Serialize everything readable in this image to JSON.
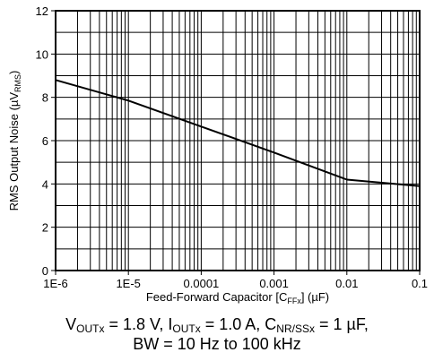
{
  "chart_data": {
    "type": "line",
    "x_scale": "log",
    "xlim": [
      1e-06,
      0.1
    ],
    "ylim": [
      0,
      12
    ],
    "grid": true,
    "x_tick_labels": [
      "1E-6",
      "1E-5",
      "0.0001",
      "0.001",
      "0.01",
      "0.1"
    ],
    "x_tick_values": [
      1e-06,
      1e-05,
      0.0001,
      0.001,
      0.01,
      0.1
    ],
    "y_tick_labels": [
      "0",
      "2",
      "4",
      "6",
      "8",
      "10",
      "12"
    ],
    "y_tick_values": [
      0,
      2,
      4,
      6,
      8,
      10,
      12
    ],
    "xlabel": {
      "main": "Feed-Forward Capacitor [C",
      "sub": "FFx",
      "tail": "] (µF)"
    },
    "ylabel": {
      "main": "RMS Output Noise (µV",
      "sub": "RMS",
      "tail": ")"
    },
    "series": [
      {
        "color": "#000000",
        "x": [
          1e-06,
          1e-05,
          0.0001,
          0.001,
          0.01,
          0.1
        ],
        "y": [
          8.8,
          7.85,
          6.65,
          5.45,
          4.2,
          3.9
        ]
      }
    ]
  },
  "caption": {
    "line1": [
      {
        "t": "V"
      },
      {
        "s": "OUTx"
      },
      {
        "t": " = 1.8 V, I"
      },
      {
        "s": "OUTx"
      },
      {
        "t": " = 1.0 A, C"
      },
      {
        "s": "NR/SSx"
      },
      {
        "t": " = 1 µF,"
      }
    ],
    "line2": "BW = 10 Hz to 100 kHz"
  }
}
